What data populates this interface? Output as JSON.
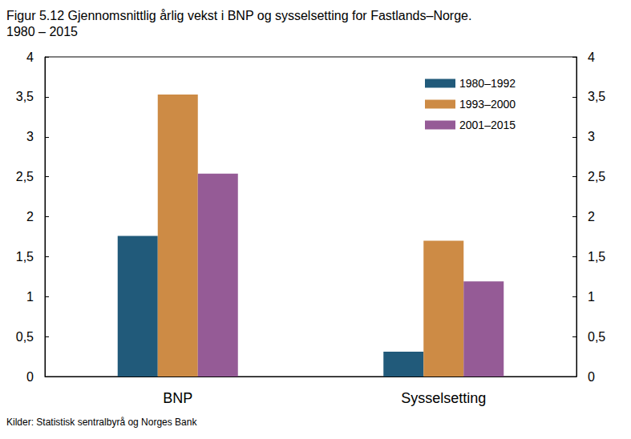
{
  "chart_data": {
    "type": "bar",
    "title": "Figur 5.12 Gjennomsnittlig årlig vekst i BNP og sysselsetting for Fastlands–Norge.\n1980 – 2015",
    "note": "Kilder: Statistisk sentralbyrå og Norges Bank",
    "categories": [
      "BNP",
      "Sysselsetting"
    ],
    "series": [
      {
        "name": "1980–1992",
        "color": "#215a7a",
        "values": [
          1.76,
          0.31
        ]
      },
      {
        "name": "1993–2000",
        "color": "#cd8b45",
        "values": [
          3.53,
          1.7
        ]
      },
      {
        "name": "2001–2015",
        "color": "#955b96",
        "values": [
          2.54,
          1.19
        ]
      }
    ],
    "ylim": [
      0,
      4
    ],
    "yticks": [
      0,
      {
        "value": 0.5,
        "label": "0,5"
      },
      1,
      {
        "value": 1.5,
        "label": "1,5"
      },
      2,
      {
        "value": 2.5,
        "label": "2,5"
      },
      3,
      {
        "value": 3.5,
        "label": "3,5"
      },
      4
    ],
    "y2lim": [
      0,
      4
    ],
    "y2ticks": [
      0,
      {
        "value": 0.5,
        "label": "0,5"
      },
      1,
      {
        "value": 1.5,
        "label": "1,5"
      },
      2,
      {
        "value": 2.5,
        "label": "2,5"
      },
      3,
      {
        "value": 3.5,
        "label": "3,5"
      },
      4
    ],
    "grid": false,
    "legend": "upper right"
  }
}
